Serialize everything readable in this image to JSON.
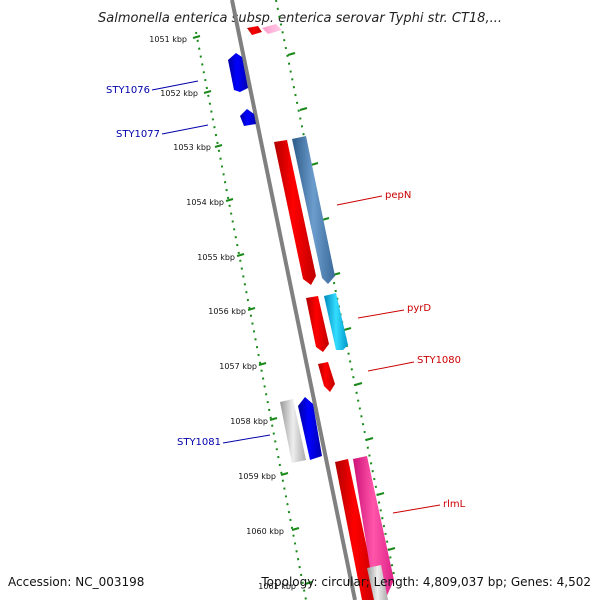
{
  "title": "Salmonella enterica subsp. enterica serovar Typhi str. CT18,...",
  "footer": {
    "accession": "Accession: NC_003198",
    "topology": "Topology: circular; Length: 4,809,037 bp; Genes: 4,502"
  },
  "ticks": [
    "1051 kbp",
    "1052 kbp",
    "1053 kbp",
    "1054 kbp",
    "1055 kbp",
    "1056 kbp",
    "1057 kbp",
    "1058 kbp",
    "1059 kbp",
    "1060 kbp",
    "1061 kbp"
  ],
  "colors": {
    "backbone": "#888888",
    "ruler": "#1a8a1a",
    "label_red": "#cc0000",
    "label_blue": "#0000aa"
  },
  "features": [
    {
      "id": "pink-top",
      "label": "",
      "strand": "reverse",
      "track": 1,
      "color": "#ff88cc"
    },
    {
      "id": "red-top",
      "label": "",
      "strand": "reverse",
      "track": 0,
      "color": "#ff0000"
    },
    {
      "id": "STY1076",
      "label": "STY1076",
      "strand": "forward",
      "track": 0,
      "color": "#0000ee"
    },
    {
      "id": "STY1077",
      "label": "STY1077",
      "strand": "forward",
      "track": 0,
      "color": "#0000ee"
    },
    {
      "id": "pepN-cds",
      "label": "",
      "strand": "reverse",
      "track": 0,
      "color": "#ff0000"
    },
    {
      "id": "pepN",
      "label": "pepN",
      "strand": "reverse",
      "track": 1,
      "color": "#4a7fb5"
    },
    {
      "id": "pyrD-cds",
      "label": "",
      "strand": "reverse",
      "track": 0,
      "color": "#ff0000"
    },
    {
      "id": "pyrD",
      "label": "pyrD",
      "strand": "reverse",
      "track": 1,
      "color": "#00bbee"
    },
    {
      "id": "STY1080",
      "label": "STY1080",
      "strand": "reverse",
      "track": 0,
      "color": "#ff0000"
    },
    {
      "id": "STY1081-grey",
      "label": "",
      "strand": "forward",
      "track": 1,
      "color": "#bbbbbb"
    },
    {
      "id": "STY1081",
      "label": "STY1081",
      "strand": "forward",
      "track": 0,
      "color": "#0000ee"
    },
    {
      "id": "rlmL-cds",
      "label": "",
      "strand": "reverse",
      "track": 0,
      "color": "#ff0000"
    },
    {
      "id": "rlmL",
      "label": "rlmL",
      "strand": "reverse",
      "track": 1,
      "color": "#ff3399"
    }
  ]
}
